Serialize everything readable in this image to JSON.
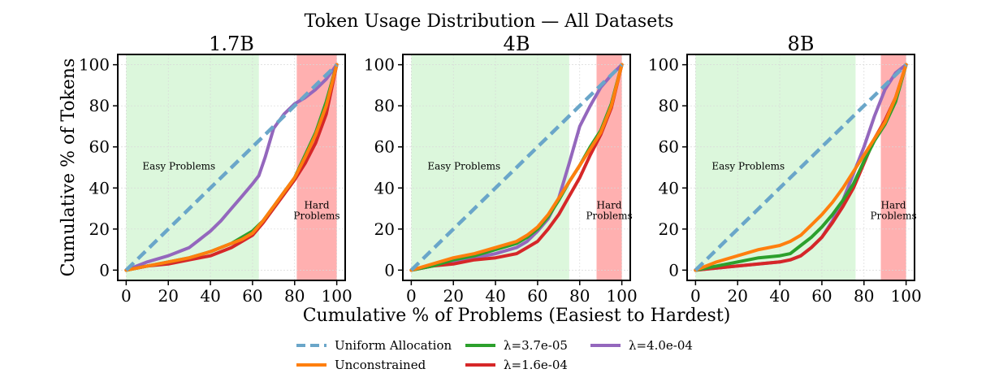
{
  "figure_title": "Token Usage Distribution — All Datasets",
  "xlabel": "Cumulative % of Problems (Easiest to Hardest)",
  "ylabel": "Cumulative % of Tokens",
  "colors": {
    "uniform": "#6aa6c9",
    "unconstrained": "#ff7f0e",
    "lam_3_7e_05": "#2ca02c",
    "lam_1_6e_04": "#d62728",
    "lam_4_0e_04": "#9467bd",
    "easy_region": "#dcf7dc",
    "hard_region": "#ffb0b0"
  },
  "legend": [
    {
      "key": "uniform",
      "label": "Uniform Allocation",
      "dashed": true
    },
    {
      "key": "unconstrained",
      "label": "Unconstrained",
      "dashed": false
    },
    {
      "key": "lam_3_7e_05",
      "label": "λ=3.7e-05",
      "dashed": false
    },
    {
      "key": "lam_1_6e_04",
      "label": "λ=1.6e-04",
      "dashed": false
    },
    {
      "key": "lam_4_0e_04",
      "label": "λ=4.0e-04",
      "dashed": false
    }
  ],
  "chart_data": [
    {
      "type": "line",
      "title": "1.7B",
      "xlim": [
        -4,
        104
      ],
      "ylim": [
        -5,
        105
      ],
      "xticks": [
        0,
        20,
        40,
        60,
        80,
        100
      ],
      "yticks": [
        0,
        20,
        40,
        60,
        80,
        100
      ],
      "easy_region": {
        "label": "Easy Problems",
        "x": [
          0,
          63
        ]
      },
      "hard_region": {
        "label_lines": [
          "Hard",
          "Problems"
        ],
        "x": [
          81,
          100
        ]
      },
      "series": [
        {
          "key": "uniform",
          "name": "Uniform Allocation",
          "x": [
            0,
            100
          ],
          "y": [
            0,
            100
          ]
        },
        {
          "key": "unconstrained",
          "name": "Unconstrained",
          "x": [
            0,
            10,
            20,
            30,
            40,
            50,
            55,
            60,
            65,
            70,
            75,
            80,
            85,
            90,
            95,
            100
          ],
          "y": [
            0,
            2,
            4,
            6,
            9,
            13,
            15,
            18,
            24,
            31,
            38,
            45,
            55,
            66,
            80,
            100
          ]
        },
        {
          "key": "lam_3_7e_05",
          "name": "λ=3.7e-05",
          "x": [
            0,
            10,
            20,
            30,
            40,
            50,
            55,
            60,
            65,
            70,
            75,
            80,
            85,
            90,
            95,
            100
          ],
          "y": [
            0,
            2,
            4,
            6,
            9,
            13,
            16,
            19,
            24,
            31,
            38,
            45,
            56,
            67,
            82,
            100
          ]
        },
        {
          "key": "lam_1_6e_04",
          "name": "λ=1.6e-04",
          "x": [
            0,
            10,
            20,
            30,
            40,
            50,
            55,
            60,
            65,
            70,
            75,
            80,
            85,
            90,
            95,
            100
          ],
          "y": [
            0,
            2,
            3,
            5,
            7,
            11,
            14,
            17,
            23,
            30,
            37,
            44,
            52,
            62,
            76,
            100
          ]
        },
        {
          "key": "lam_4_0e_04",
          "name": "λ=4.0e-04",
          "x": [
            0,
            10,
            20,
            25,
            30,
            35,
            40,
            45,
            50,
            55,
            60,
            63,
            66,
            70,
            75,
            80,
            85,
            90,
            95,
            100
          ],
          "y": [
            0,
            4,
            7,
            9,
            11,
            15,
            19,
            24,
            30,
            36,
            42,
            46,
            55,
            69,
            76,
            81,
            84,
            88,
            93,
            100
          ]
        }
      ]
    },
    {
      "type": "line",
      "title": "4B",
      "xlim": [
        -4,
        104
      ],
      "ylim": [
        -5,
        105
      ],
      "xticks": [
        0,
        20,
        40,
        60,
        80,
        100
      ],
      "yticks": [
        0,
        20,
        40,
        60,
        80,
        100
      ],
      "easy_region": {
        "label": "Easy Problems",
        "x": [
          0,
          75
        ]
      },
      "hard_region": {
        "label_lines": [
          "Hard",
          "Problems"
        ],
        "x": [
          88,
          100
        ]
      },
      "series": [
        {
          "key": "uniform",
          "name": "Uniform Allocation",
          "x": [
            0,
            100
          ],
          "y": [
            0,
            100
          ]
        },
        {
          "key": "unconstrained",
          "name": "Unconstrained",
          "x": [
            0,
            10,
            20,
            30,
            40,
            50,
            55,
            60,
            65,
            70,
            75,
            80,
            85,
            90,
            95,
            100
          ],
          "y": [
            0,
            3,
            6,
            8,
            11,
            14,
            17,
            21,
            27,
            35,
            43,
            51,
            59,
            67,
            80,
            100
          ]
        },
        {
          "key": "lam_3_7e_05",
          "name": "λ=3.7e-05",
          "x": [
            0,
            10,
            20,
            30,
            40,
            50,
            55,
            60,
            65,
            70,
            75,
            80,
            85,
            90,
            95,
            100
          ],
          "y": [
            0,
            2,
            5,
            7,
            10,
            13,
            16,
            20,
            26,
            34,
            43,
            51,
            60,
            68,
            81,
            100
          ]
        },
        {
          "key": "lam_1_6e_04",
          "name": "λ=1.6e-04",
          "x": [
            0,
            10,
            20,
            30,
            40,
            50,
            55,
            60,
            65,
            70,
            75,
            80,
            85,
            90,
            95,
            100
          ],
          "y": [
            0,
            2,
            3,
            5,
            6,
            8,
            11,
            14,
            20,
            27,
            36,
            45,
            56,
            66,
            79,
            100
          ]
        },
        {
          "key": "lam_4_0e_04",
          "name": "λ=4.0e-04",
          "x": [
            0,
            10,
            20,
            30,
            40,
            50,
            55,
            60,
            65,
            70,
            75,
            80,
            85,
            90,
            95,
            100
          ],
          "y": [
            0,
            2,
            4,
            6,
            8,
            11,
            14,
            19,
            25,
            35,
            52,
            70,
            80,
            89,
            95,
            100
          ]
        }
      ]
    },
    {
      "type": "line",
      "title": "8B",
      "xlim": [
        -4,
        104
      ],
      "ylim": [
        -5,
        105
      ],
      "xticks": [
        0,
        20,
        40,
        60,
        80,
        100
      ],
      "yticks": [
        0,
        20,
        40,
        60,
        80,
        100
      ],
      "easy_region": {
        "label": "Easy Problems",
        "x": [
          0,
          76
        ]
      },
      "hard_region": {
        "label_lines": [
          "Hard",
          "Problems"
        ],
        "x": [
          88,
          100
        ]
      },
      "series": [
        {
          "key": "uniform",
          "name": "Uniform Allocation",
          "x": [
            0,
            100
          ],
          "y": [
            0,
            100
          ]
        },
        {
          "key": "unconstrained",
          "name": "Unconstrained",
          "x": [
            0,
            10,
            20,
            30,
            40,
            45,
            50,
            55,
            60,
            65,
            70,
            75,
            80,
            85,
            90,
            95,
            100
          ],
          "y": [
            0,
            4,
            7,
            10,
            12,
            14,
            17,
            22,
            27,
            33,
            40,
            48,
            56,
            64,
            72,
            84,
            100
          ]
        },
        {
          "key": "lam_3_7e_05",
          "name": "λ=3.7e-05",
          "x": [
            0,
            10,
            20,
            30,
            40,
            45,
            50,
            55,
            60,
            65,
            70,
            75,
            80,
            85,
            90,
            95,
            100
          ],
          "y": [
            0,
            2,
            4,
            6,
            7,
            8,
            12,
            16,
            21,
            27,
            34,
            42,
            53,
            63,
            71,
            82,
            100
          ]
        },
        {
          "key": "lam_1_6e_04",
          "name": "λ=1.6e-04",
          "x": [
            0,
            10,
            20,
            30,
            40,
            45,
            50,
            55,
            60,
            65,
            70,
            75,
            80,
            85,
            90,
            95,
            100
          ],
          "y": [
            0,
            1,
            2,
            3,
            4,
            5,
            7,
            11,
            16,
            23,
            31,
            40,
            52,
            64,
            73,
            84,
            100
          ]
        },
        {
          "key": "lam_4_0e_04",
          "name": "λ=4.0e-04",
          "x": [
            0,
            10,
            20,
            30,
            40,
            45,
            50,
            55,
            60,
            65,
            70,
            75,
            80,
            85,
            90,
            95,
            100
          ],
          "y": [
            0,
            1,
            2,
            3,
            4,
            5,
            7,
            11,
            16,
            24,
            34,
            47,
            60,
            75,
            88,
            96,
            100
          ]
        }
      ]
    }
  ]
}
